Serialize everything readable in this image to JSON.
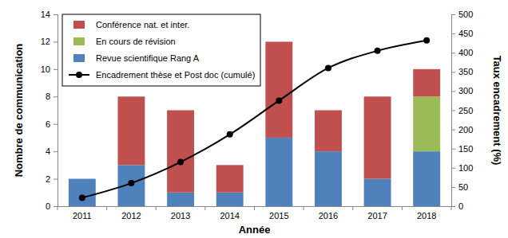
{
  "chart_data": {
    "type": "bar",
    "stacked": true,
    "legend": "top-left",
    "x_label": "Année",
    "y_label": "Nombre de communication",
    "y2_label": "Taux encadrement (%)",
    "categories": [
      "2011",
      "2012",
      "2013",
      "2014",
      "2015",
      "2016",
      "2017",
      "2018"
    ],
    "ylim": [
      0,
      14
    ],
    "yticks": [
      0,
      2,
      4,
      6,
      8,
      10,
      12,
      14
    ],
    "y2lim": [
      0,
      500
    ],
    "y2ticks": [
      0,
      50,
      100,
      150,
      200,
      250,
      300,
      350,
      400,
      450,
      500
    ],
    "series": [
      {
        "name": "Revue scientifique Rang A",
        "color": "#4f81bd",
        "values": [
          2,
          3,
          1,
          1,
          5,
          4,
          2,
          4
        ]
      },
      {
        "name": "En cours de révision",
        "color": "#9bbb59",
        "values": [
          0,
          0,
          0,
          0,
          0,
          0,
          0,
          4
        ]
      },
      {
        "name": "Conférence nat. et inter.",
        "color": "#c0504d",
        "values": [
          0,
          5,
          6,
          2,
          7,
          3,
          6,
          2
        ]
      },
      {
        "name": "Encadrement thèse et Post doc (cumulé)",
        "color": "#000000",
        "type": "line",
        "axis": "y2",
        "marker": "circle",
        "line_style": "solid",
        "values": [
          22,
          60,
          115,
          187,
          275,
          360,
          405,
          432
        ]
      }
    ]
  }
}
